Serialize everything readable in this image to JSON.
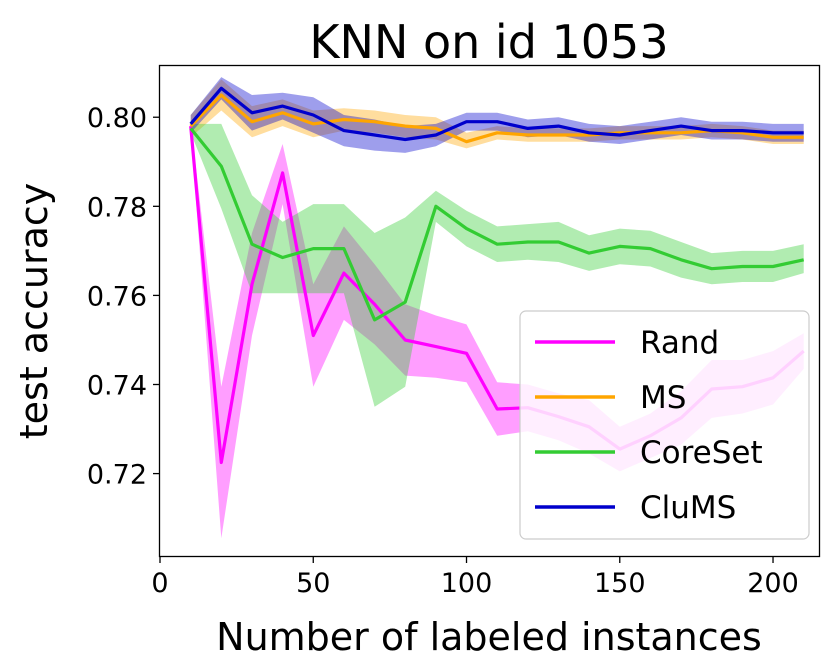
{
  "chart_data": {
    "type": "line",
    "title": "KNN on id 1053",
    "xlabel": "Number of labeled instances",
    "ylabel": "test accuracy",
    "xlim": [
      0,
      215
    ],
    "ylim": [
      0.7015,
      0.8115
    ],
    "xticks": [
      0,
      50,
      100,
      150,
      200
    ],
    "yticks": [
      0.72,
      0.74,
      0.76,
      0.78,
      0.8
    ],
    "ytick_labels": [
      "0.72",
      "0.74",
      "0.76",
      "0.78",
      "0.80"
    ],
    "grid": false,
    "legend_position": "lower-right",
    "x": [
      10,
      20,
      30,
      40,
      50,
      60,
      70,
      80,
      90,
      100,
      110,
      120,
      130,
      140,
      150,
      160,
      170,
      180,
      190,
      200,
      210
    ],
    "series": [
      {
        "name": "Rand",
        "color": "#ff00ff",
        "values": [
          0.798,
          0.7225,
          0.7625,
          0.7875,
          0.751,
          0.765,
          0.758,
          0.75,
          0.7485,
          0.747,
          0.7345,
          0.7348,
          0.7328,
          0.7305,
          0.7255,
          0.7285,
          0.7325,
          0.739,
          0.7395,
          0.7415,
          0.7475
        ],
        "lower": [
          0.797,
          0.7055,
          0.751,
          0.7805,
          0.7395,
          0.7545,
          0.749,
          0.742,
          0.7415,
          0.7405,
          0.7285,
          0.7295,
          0.7275,
          0.7245,
          0.7205,
          0.7235,
          0.7265,
          0.7325,
          0.7335,
          0.7355,
          0.7435
        ],
        "upper": [
          0.799,
          0.7395,
          0.774,
          0.794,
          0.7625,
          0.7755,
          0.767,
          0.758,
          0.7555,
          0.7535,
          0.7405,
          0.74,
          0.738,
          0.7365,
          0.7305,
          0.7335,
          0.7385,
          0.7455,
          0.7455,
          0.7475,
          0.7515
        ]
      },
      {
        "name": "MS",
        "color": "#ffa500",
        "values": [
          0.798,
          0.805,
          0.799,
          0.801,
          0.7985,
          0.7995,
          0.799,
          0.798,
          0.7975,
          0.7945,
          0.7965,
          0.796,
          0.796,
          0.796,
          0.7965,
          0.7965,
          0.7965,
          0.797,
          0.7965,
          0.7955,
          0.7955
        ],
        "lower": [
          0.7955,
          0.8015,
          0.7955,
          0.798,
          0.7955,
          0.797,
          0.7965,
          0.7955,
          0.795,
          0.793,
          0.795,
          0.7945,
          0.7945,
          0.7945,
          0.795,
          0.795,
          0.795,
          0.7955,
          0.795,
          0.794,
          0.794
        ],
        "upper": [
          0.8005,
          0.8085,
          0.8025,
          0.804,
          0.8015,
          0.802,
          0.8015,
          0.8005,
          0.8,
          0.7965,
          0.798,
          0.7975,
          0.7975,
          0.7975,
          0.798,
          0.798,
          0.798,
          0.7985,
          0.798,
          0.797,
          0.797
        ]
      },
      {
        "name": "CoreSet",
        "color": "#33cc33",
        "values": [
          0.7975,
          0.789,
          0.7715,
          0.7685,
          0.7705,
          0.7705,
          0.7545,
          0.7585,
          0.78,
          0.775,
          0.7715,
          0.772,
          0.772,
          0.7695,
          0.771,
          0.7705,
          0.768,
          0.766,
          0.7665,
          0.7665,
          0.768
        ],
        "lower": [
          0.7965,
          0.7795,
          0.7605,
          0.7605,
          0.7605,
          0.7605,
          0.735,
          0.7395,
          0.7765,
          0.771,
          0.7675,
          0.768,
          0.7675,
          0.7655,
          0.767,
          0.7665,
          0.764,
          0.7625,
          0.763,
          0.763,
          0.765
        ],
        "upper": [
          0.7985,
          0.7985,
          0.7825,
          0.7765,
          0.7805,
          0.7805,
          0.774,
          0.7775,
          0.7835,
          0.779,
          0.7755,
          0.776,
          0.7765,
          0.7735,
          0.775,
          0.7745,
          0.772,
          0.7695,
          0.77,
          0.77,
          0.7715
        ]
      },
      {
        "name": "CluMS",
        "color": "#0000cc",
        "values": [
          0.7985,
          0.8065,
          0.801,
          0.8025,
          0.8005,
          0.797,
          0.796,
          0.795,
          0.796,
          0.799,
          0.799,
          0.7975,
          0.798,
          0.7965,
          0.796,
          0.797,
          0.798,
          0.797,
          0.797,
          0.7965,
          0.7965
        ],
        "lower": [
          0.7965,
          0.804,
          0.797,
          0.7995,
          0.7965,
          0.7935,
          0.7925,
          0.792,
          0.7935,
          0.797,
          0.797,
          0.7955,
          0.796,
          0.7945,
          0.794,
          0.795,
          0.796,
          0.795,
          0.795,
          0.7945,
          0.7945
        ],
        "upper": [
          0.8005,
          0.809,
          0.805,
          0.8055,
          0.8045,
          0.8005,
          0.7995,
          0.798,
          0.7985,
          0.801,
          0.801,
          0.7995,
          0.8,
          0.7985,
          0.798,
          0.799,
          0.8,
          0.799,
          0.799,
          0.7985,
          0.7985
        ]
      }
    ]
  }
}
